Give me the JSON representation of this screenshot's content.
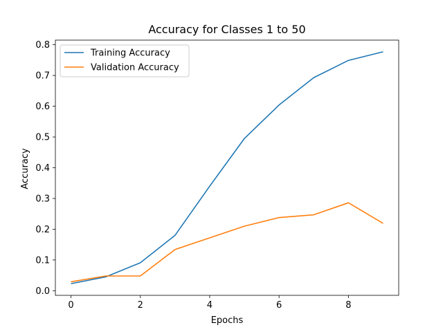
{
  "chart_data": {
    "type": "line",
    "title": "Accuracy for Classes 1 to 50",
    "xlabel": "Epochs",
    "ylabel": "Accuracy",
    "x": [
      0,
      1,
      2,
      3,
      4,
      5,
      6,
      7,
      8,
      9
    ],
    "xlim": [
      -0.45,
      9.45
    ],
    "ylim": [
      -0.015,
      0.815
    ],
    "xticks": [
      0,
      2,
      4,
      6,
      8
    ],
    "yticks": [
      0.0,
      0.1,
      0.2,
      0.3,
      0.4,
      0.5,
      0.6,
      0.7,
      0.8
    ],
    "xtick_labels": [
      "0",
      "2",
      "4",
      "6",
      "8"
    ],
    "ytick_labels": [
      "0.0",
      "0.1",
      "0.2",
      "0.3",
      "0.4",
      "0.5",
      "0.6",
      "0.7",
      "0.8"
    ],
    "grid": false,
    "legend_position": "top-left",
    "series": [
      {
        "name": "Training Accuracy",
        "color": "#1f77b4",
        "values": [
          0.023,
          0.045,
          0.091,
          0.18,
          0.34,
          0.495,
          0.604,
          0.693,
          0.749,
          0.777
        ]
      },
      {
        "name": "Validation Accuracy",
        "color": "#ff7f0e",
        "values": [
          0.029,
          0.048,
          0.048,
          0.134,
          0.172,
          0.21,
          0.238,
          0.247,
          0.286,
          0.219
        ]
      }
    ]
  }
}
